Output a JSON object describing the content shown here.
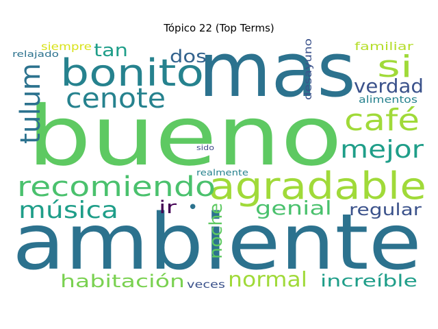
{
  "title": "Tópico 22 (Top Terms)",
  "words": [
    {
      "text": "bueno",
      "color": "#5ec962"
    },
    {
      "text": "ambiente",
      "color": "#2c728e"
    },
    {
      "text": "mas",
      "color": "#2c728e"
    },
    {
      "text": "bonito",
      "color": "#26828e"
    },
    {
      "text": "agradable",
      "color": "#a0da39"
    },
    {
      "text": "recomiendo",
      "color": "#4ac16d"
    },
    {
      "text": "café",
      "color": "#a0da39"
    },
    {
      "text": "cenote",
      "color": "#26828e"
    },
    {
      "text": "tulum",
      "color": "#2c728e"
    },
    {
      "text": "si",
      "color": "#a0da39"
    },
    {
      "text": "mejor",
      "color": "#1f9e89"
    },
    {
      "text": "música",
      "color": "#1f9e89"
    },
    {
      "text": "verdad",
      "color": "#3b528b"
    },
    {
      "text": "normal",
      "color": "#a0da39"
    },
    {
      "text": "habitación",
      "color": "#7ad151"
    },
    {
      "text": "increíble",
      "color": "#1f9e89"
    },
    {
      "text": "noche",
      "color": "#5ec962"
    },
    {
      "text": "genial",
      "color": "#4ac16d"
    },
    {
      "text": "regular",
      "color": "#3b528b"
    },
    {
      "text": "dos",
      "color": "#33638d"
    },
    {
      "text": "tan",
      "color": "#1f9e89"
    },
    {
      "text": "ir",
      "color": "#440154"
    },
    {
      "text": "desayuno",
      "color": "#3b528b"
    },
    {
      "text": "familiar",
      "color": "#b5de2b"
    },
    {
      "text": "alimentos",
      "color": "#26828e"
    },
    {
      "text": "siempre",
      "color": "#d8e219"
    },
    {
      "text": "relajado",
      "color": "#2c728e"
    },
    {
      "text": "veces",
      "color": "#3b528b"
    },
    {
      "text": "sido",
      "color": "#3e4989"
    },
    {
      "text": "realmente",
      "color": "#26828e"
    },
    {
      "text": "•",
      "color": "#2c728e"
    }
  ]
}
